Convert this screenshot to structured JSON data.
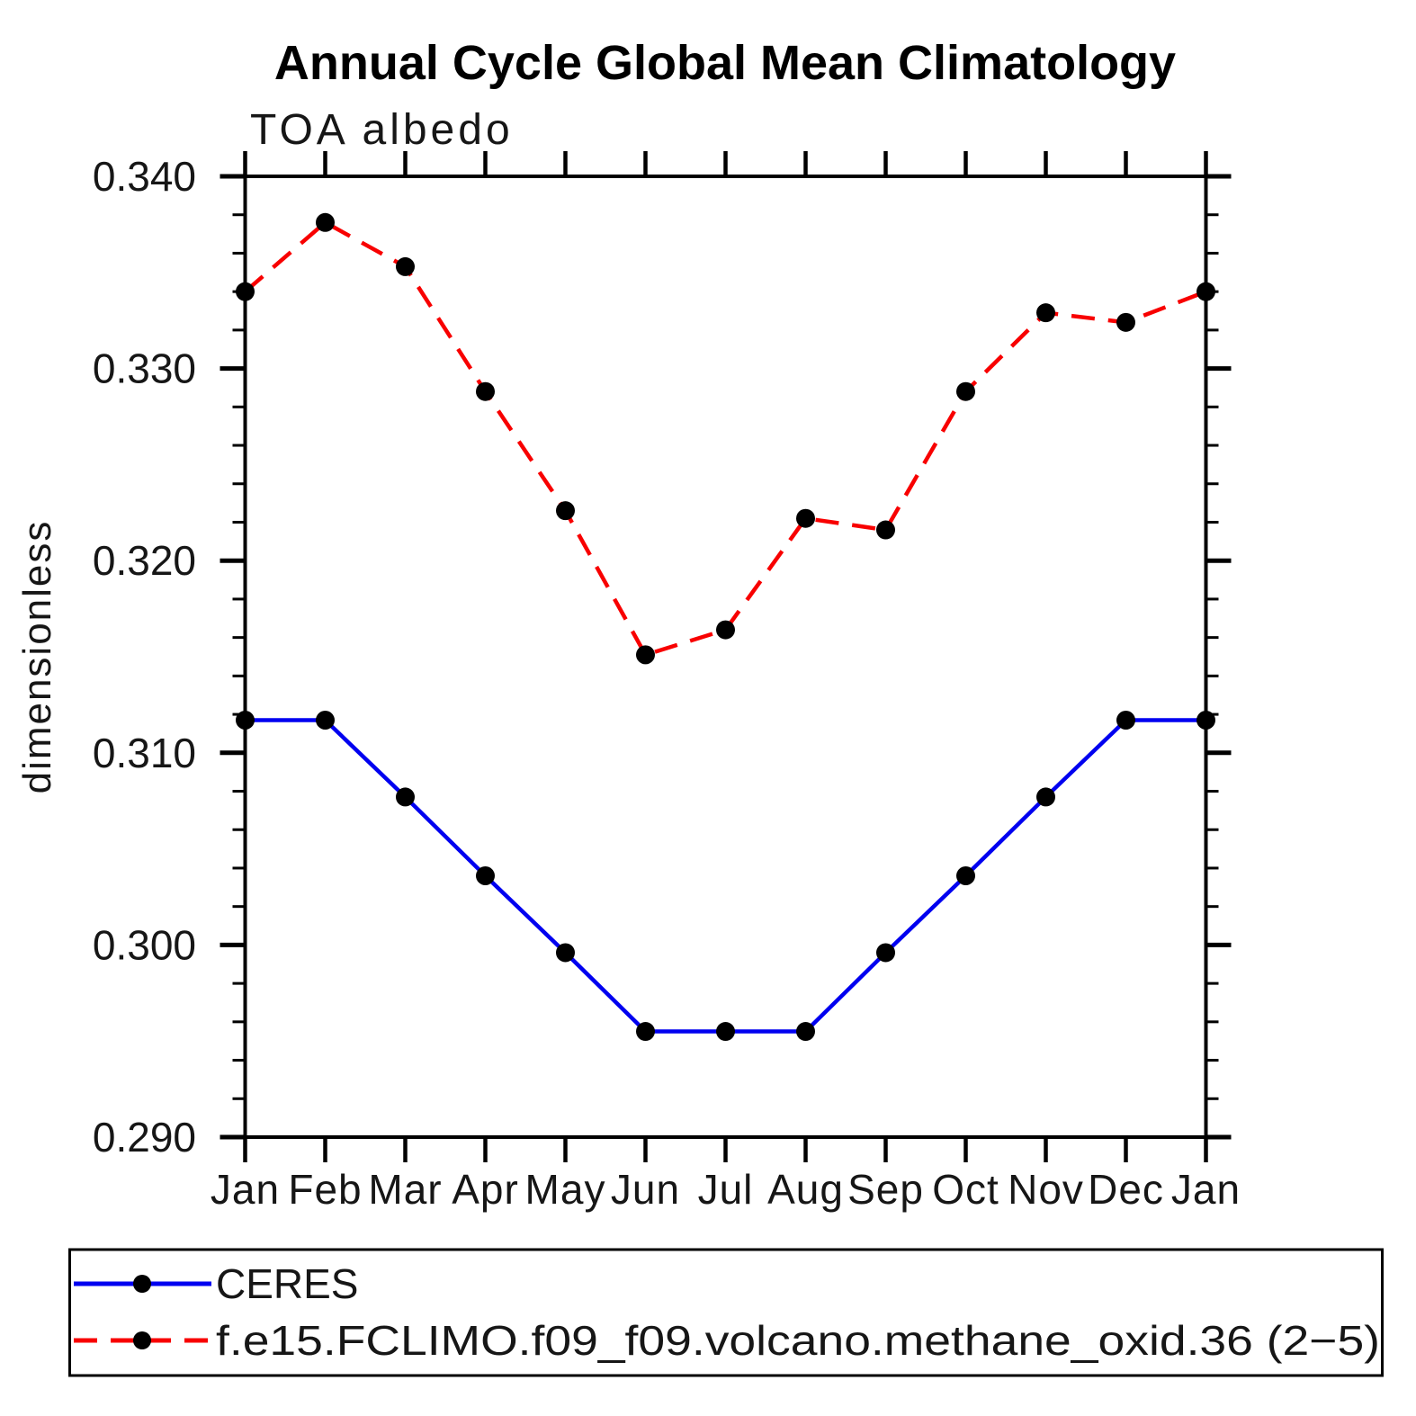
{
  "chart_data": {
    "type": "line",
    "title": "Annual Cycle Global Mean Climatology",
    "subtitle": "TOA albedo",
    "xlabel": "",
    "ylabel": "dimensionless",
    "categories": [
      "Jan",
      "Feb",
      "Mar",
      "Apr",
      "May",
      "Jun",
      "Jul",
      "Aug",
      "Sep",
      "Oct",
      "Nov",
      "Dec",
      "Jan"
    ],
    "series": [
      {
        "name": "CERES",
        "color": "#0000f0",
        "line_style": "solid",
        "marker": "filled-circle",
        "marker_color": "#000000",
        "values": [
          0.3117,
          0.3117,
          0.3077,
          0.3036,
          0.2996,
          0.2955,
          0.2955,
          0.2955,
          0.2996,
          0.3036,
          0.3077,
          0.3117,
          0.3117
        ]
      },
      {
        "name": "f.e15.FCLIMO.f09_f09.volcano.methane_oxid.36 (2−5)",
        "color": "#f80000",
        "line_style": "dashed",
        "marker": "filled-circle",
        "marker_color": "#000000",
        "values": [
          0.334,
          0.3376,
          0.3353,
          0.3288,
          0.3226,
          0.3151,
          0.3164,
          0.3222,
          0.3216,
          0.3288,
          0.3329,
          0.3324,
          0.334
        ]
      }
    ],
    "ylim": [
      0.29,
      0.34
    ],
    "ytick_major_values": [
      0.29,
      0.3,
      0.31,
      0.32,
      0.33,
      0.34
    ],
    "ytick_labels": [
      "0.290",
      "0.300",
      "0.310",
      "0.320",
      "0.330",
      "0.340"
    ],
    "y_minor_step": 0.002,
    "grid": false,
    "legend_position": "bottom",
    "axis_color": "#000000"
  }
}
